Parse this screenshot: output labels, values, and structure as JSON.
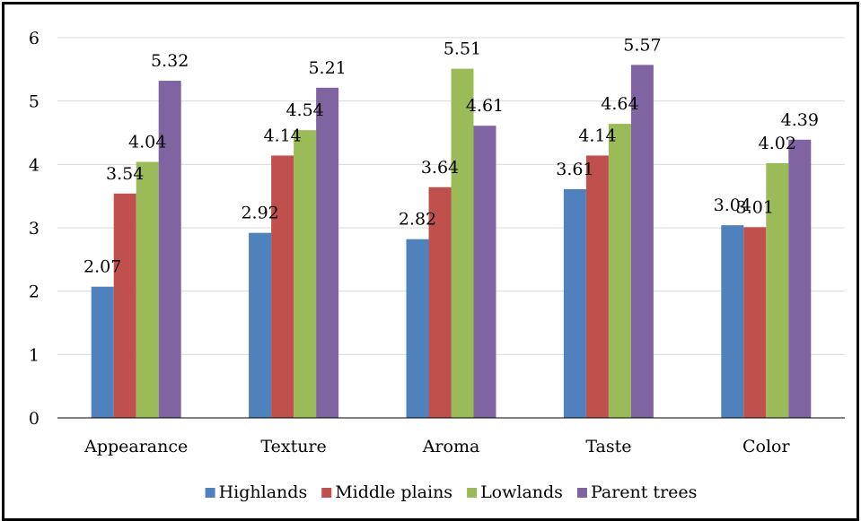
{
  "chart_data": {
    "type": "bar",
    "title": "",
    "xlabel": "",
    "ylabel": "",
    "categories": [
      "Appearance",
      "Texture",
      "Aroma",
      "Taste",
      "Color"
    ],
    "series": [
      {
        "name": "Highlands",
        "color": "#4f81bd",
        "values": [
          2.07,
          2.92,
          2.82,
          3.61,
          3.04
        ]
      },
      {
        "name": "Middle plains",
        "color": "#c0504d",
        "values": [
          3.54,
          4.14,
          3.64,
          4.14,
          3.01
        ]
      },
      {
        "name": "Lowlands",
        "color": "#9bbb59",
        "values": [
          4.04,
          4.54,
          5.51,
          4.64,
          4.02
        ]
      },
      {
        "name": "Parent trees",
        "color": "#8064a2",
        "values": [
          5.32,
          5.21,
          4.61,
          5.57,
          4.39
        ]
      }
    ],
    "ylim": [
      0,
      6
    ],
    "yticks": [
      0,
      1,
      2,
      3,
      4,
      5,
      6
    ],
    "grid": true,
    "data_labels": true,
    "legend": "bottom"
  }
}
